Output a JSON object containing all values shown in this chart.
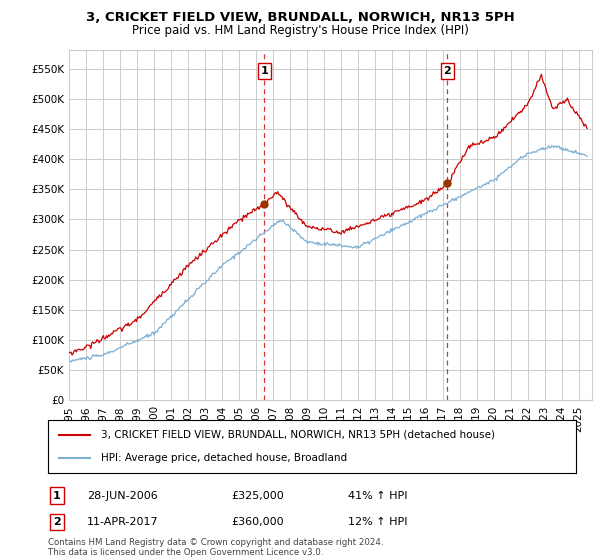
{
  "title": "3, CRICKET FIELD VIEW, BRUNDALL, NORWICH, NR13 5PH",
  "subtitle": "Price paid vs. HM Land Registry's House Price Index (HPI)",
  "title_fontsize": 9.5,
  "subtitle_fontsize": 8.5,
  "ylabel_vals": [
    0,
    50000,
    100000,
    150000,
    200000,
    250000,
    300000,
    350000,
    400000,
    450000,
    500000,
    550000
  ],
  "ylim": [
    0,
    580000
  ],
  "xlim_start": 1995.0,
  "xlim_end": 2025.8,
  "xtick_years": [
    1995,
    1996,
    1997,
    1998,
    1999,
    2000,
    2001,
    2002,
    2003,
    2004,
    2005,
    2006,
    2007,
    2008,
    2009,
    2010,
    2011,
    2012,
    2013,
    2014,
    2015,
    2016,
    2017,
    2018,
    2019,
    2020,
    2021,
    2022,
    2023,
    2024,
    2025
  ],
  "sale1_x": 2006.49,
  "sale1_y": 325000,
  "sale2_x": 2017.28,
  "sale2_y": 360000,
  "line_color_red": "#cc0000",
  "line_color_blue": "#7bafd4",
  "grid_color": "#cccccc",
  "background_color": "#ffffff",
  "legend_label_red": "3, CRICKET FIELD VIEW, BRUNDALL, NORWICH, NR13 5PH (detached house)",
  "legend_label_blue": "HPI: Average price, detached house, Broadland",
  "ann1_label": "1",
  "ann2_label": "2",
  "ann1_date": "28-JUN-2006",
  "ann1_price": "£325,000",
  "ann1_hpi": "41% ↑ HPI",
  "ann2_date": "11-APR-2017",
  "ann2_price": "£360,000",
  "ann2_hpi": "12% ↑ HPI",
  "footer": "Contains HM Land Registry data © Crown copyright and database right 2024.\nThis data is licensed under the Open Government Licence v3.0."
}
